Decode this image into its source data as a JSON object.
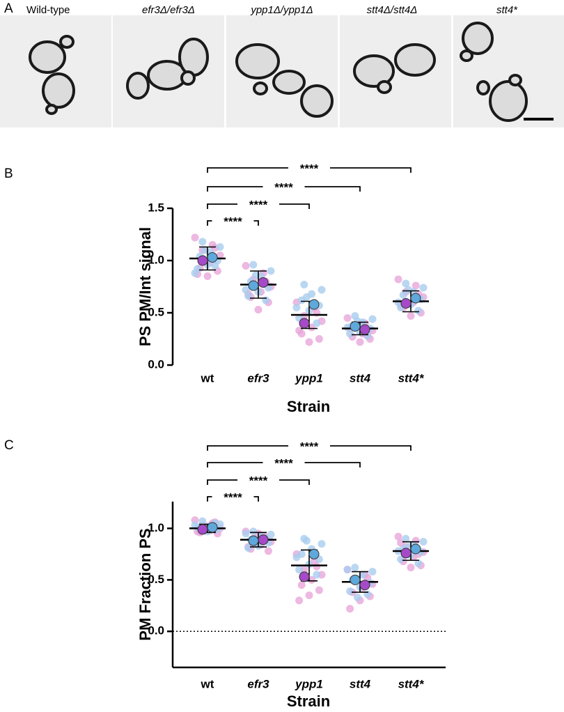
{
  "panel_a": {
    "panel_label": "A",
    "image_labels": [
      "Wild-type",
      "efr3Δ/efr3Δ",
      "ypp1Δ/ypp1Δ",
      "stt4Δ/stt4Δ",
      "stt4*"
    ]
  },
  "chart_data": [
    {
      "type": "dotplot",
      "panel_label": "B",
      "ylabel": "PS PM/Int signal",
      "xlabel": "Strain",
      "categories": [
        "wt",
        "efr3",
        "ypp1",
        "stt4",
        "stt4*"
      ],
      "ylim": [
        0,
        1.5
      ],
      "yticks": [
        {
          "value": 0,
          "label": "0.0"
        },
        0.5,
        {
          "value": 1,
          "label": "1.0"
        },
        1.5
      ],
      "x_axis_line": false,
      "zero_line": false,
      "significance": [
        "****",
        "****",
        "****",
        "****"
      ],
      "means": [
        1.02,
        0.77,
        0.48,
        0.35,
        0.61
      ],
      "sd": [
        0.11,
        0.13,
        0.13,
        0.06,
        0.1
      ],
      "points": [
        {
          "color": "#e9a6da",
          "values": [
            [
              1.22,
              1.15,
              1.1,
              1.05,
              0.98,
              0.93,
              0.9,
              0.85,
              0.87,
              1.12
            ],
            [
              0.95,
              0.88,
              0.82,
              0.75,
              0.7,
              0.65,
              0.6,
              0.53,
              0.68,
              0.8
            ],
            [
              0.6,
              0.55,
              0.47,
              0.42,
              0.36,
              0.3,
              0.25,
              0.22,
              0.33,
              0.5
            ],
            [
              0.45,
              0.4,
              0.37,
              0.33,
              0.3,
              0.27,
              0.25,
              0.22,
              0.35,
              0.28
            ],
            [
              0.82,
              0.76,
              0.7,
              0.65,
              0.6,
              0.55,
              0.5,
              0.47,
              0.58,
              0.68
            ]
          ]
        },
        {
          "color": "#a9cdef",
          "values": [
            [
              1.18,
              1.13,
              1.08,
              1.04,
              1.0,
              0.96,
              0.92,
              0.95,
              1.1,
              0.88
            ],
            [
              0.96,
              0.9,
              0.85,
              0.8,
              0.74,
              0.7,
              0.66,
              0.62,
              0.86,
              0.72
            ],
            [
              0.77,
              0.72,
              0.68,
              0.62,
              0.57,
              0.52,
              0.45,
              0.4,
              0.65,
              0.55
            ],
            [
              0.47,
              0.44,
              0.41,
              0.38,
              0.35,
              0.32,
              0.3,
              0.28,
              0.42,
              0.36
            ],
            [
              0.78,
              0.74,
              0.7,
              0.67,
              0.63,
              0.58,
              0.55,
              0.52,
              0.72,
              0.6
            ]
          ]
        }
      ],
      "replicate_means": [
        {
          "color": "#a64ac9",
          "values": [
            1.0,
            0.79,
            0.4,
            0.34,
            0.59
          ]
        },
        {
          "color": "#5fa8dc",
          "values": [
            1.03,
            0.76,
            0.58,
            0.37,
            0.64
          ]
        }
      ]
    },
    {
      "type": "dotplot",
      "panel_label": "C",
      "ylabel": "PM Fraction PS",
      "xlabel": "Strain",
      "categories": [
        "wt",
        "efr3",
        "ypp1",
        "stt4",
        "stt4*"
      ],
      "ylim": [
        -0.35,
        1.26
      ],
      "yticks": [
        {
          "value": 0,
          "label": "0.0"
        },
        0.5,
        {
          "value": 1,
          "label": "1.0"
        }
      ],
      "x_axis_line": true,
      "zero_line": true,
      "significance": [
        "****",
        "****",
        "****",
        "****"
      ],
      "means": [
        1.0,
        0.89,
        0.64,
        0.48,
        0.78
      ],
      "sd": [
        0.04,
        0.07,
        0.15,
        0.1,
        0.09
      ],
      "points": [
        {
          "color": "#e9a6da",
          "values": [
            [
              1.08,
              1.05,
              1.03,
              1.0,
              0.98,
              0.96,
              0.95,
              1.02,
              0.97,
              1.06
            ],
            [
              0.97,
              0.93,
              0.9,
              0.87,
              0.84,
              0.8,
              0.78,
              0.95,
              0.82,
              0.91
            ],
            [
              0.75,
              0.68,
              0.6,
              0.55,
              0.5,
              0.45,
              0.4,
              0.35,
              0.3,
              0.63
            ],
            [
              0.6,
              0.55,
              0.5,
              0.46,
              0.42,
              0.38,
              0.34,
              0.3,
              0.22,
              0.52
            ],
            [
              0.92,
              0.88,
              0.82,
              0.77,
              0.72,
              0.68,
              0.64,
              0.62,
              0.86,
              0.75
            ]
          ]
        },
        {
          "color": "#a9cdef",
          "values": [
            [
              1.07,
              1.04,
              1.02,
              1.0,
              0.99,
              0.97,
              1.01,
              1.05,
              0.98,
              1.03
            ],
            [
              0.97,
              0.94,
              0.92,
              0.89,
              0.86,
              0.83,
              0.81,
              0.9,
              0.85,
              0.95
            ],
            [
              0.9,
              0.85,
              0.8,
              0.75,
              0.7,
              0.65,
              0.6,
              0.55,
              0.88,
              0.72
            ],
            [
              0.62,
              0.58,
              0.55,
              0.5,
              0.47,
              0.43,
              0.39,
              0.36,
              0.33,
              0.6
            ],
            [
              0.9,
              0.87,
              0.84,
              0.8,
              0.77,
              0.74,
              0.7,
              0.66,
              0.82,
              0.78
            ]
          ]
        }
      ],
      "replicate_means": [
        {
          "color": "#a64ac9",
          "values": [
            0.99,
            0.89,
            0.53,
            0.45,
            0.76
          ]
        },
        {
          "color": "#5fa8dc",
          "values": [
            1.01,
            0.88,
            0.75,
            0.5,
            0.8
          ]
        }
      ]
    }
  ]
}
